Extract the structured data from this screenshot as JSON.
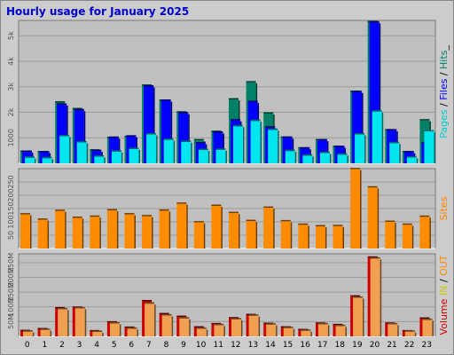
{
  "chart_data": {
    "type": "bar",
    "title": "Hourly usage for January 2025",
    "categories": [
      "0",
      "1",
      "2",
      "3",
      "4",
      "5",
      "6",
      "7",
      "8",
      "9",
      "10",
      "11",
      "12",
      "13",
      "14",
      "15",
      "16",
      "17",
      "18",
      "19",
      "20",
      "21",
      "22",
      "23"
    ],
    "panels": [
      {
        "id": "top",
        "ticks": [
          "1000",
          "2k",
          "3k",
          "4k",
          "5k"
        ],
        "tick_values": [
          1000,
          2000,
          3000,
          4000,
          5000
        ],
        "ylim": [
          0,
          5600
        ],
        "side_labels": [
          {
            "text": "Pages",
            "color": "#00cccc"
          },
          {
            "text": " / ",
            "color": "#000000"
          },
          {
            "text": "Files",
            "color": "#0000ff"
          },
          {
            "text": " / ",
            "color": "#000000"
          },
          {
            "text": "Hits",
            "color": "#008066"
          },
          {
            "text": "_",
            "color": "#000000"
          }
        ],
        "series": [
          {
            "name": "Hits",
            "color": "#008066",
            "offset": 0,
            "values": [
              450,
              430,
              2380,
              2120,
              500,
              990,
              1030,
              3040,
              2450,
              1990,
              900,
              1230,
              2500,
              3170,
              1950,
              1000,
              580,
              900,
              640,
              2800,
              5530,
              1290,
              430,
              1680
            ]
          },
          {
            "name": "Files",
            "color": "#0000ff",
            "offset": 2,
            "values": [
              450,
              430,
              2300,
              2080,
              480,
              1000,
              1050,
              3010,
              2450,
              1960,
              780,
              1200,
              1680,
              2400,
              1400,
              1000,
              580,
              900,
              640,
              2790,
              5520,
              1290,
              430,
              780
            ]
          },
          {
            "name": "Pages",
            "color": "#00e5ee",
            "offset": 5,
            "values": [
              220,
              200,
              1060,
              820,
              260,
              460,
              560,
              1130,
              920,
              840,
              520,
              530,
              1450,
              1660,
              1310,
              480,
              300,
              400,
              340,
              1130,
              2030,
              790,
              230,
              1250
            ]
          }
        ]
      },
      {
        "id": "mid",
        "ticks": [
          "50",
          "100",
          "150",
          "200",
          "250"
        ],
        "tick_values": [
          50,
          100,
          150,
          200,
          250
        ],
        "ylim": [
          0,
          300
        ],
        "side_labels": [
          {
            "text": "Sites",
            "color": "#ff8000"
          }
        ],
        "series": [
          {
            "name": "Sites",
            "color": "#ff8c00",
            "offset": 0,
            "values": [
              128,
              108,
              141,
              115,
              119,
              143,
              128,
              121,
              142,
              168,
              98,
              160,
              133,
              103,
              153,
              102,
              89,
              83,
              84,
              298,
              229,
              100,
              89,
              119
            ]
          }
        ]
      },
      {
        "id": "bot",
        "ticks": [
          "50M",
          "100M",
          "150M",
          "200M",
          "250M"
        ],
        "tick_values": [
          50,
          100,
          150,
          200,
          250
        ],
        "ylim": [
          0,
          280
        ],
        "side_labels": [
          {
            "text": "Volume",
            "color": "#cc0000"
          },
          {
            "text": " ",
            "color": "#000000"
          },
          {
            "text": "IN",
            "color": "#cccc00"
          },
          {
            "text": " / ",
            "color": "#000000"
          },
          {
            "text": "OUT",
            "color": "#ff8c00"
          }
        ],
        "series": [
          {
            "name": "IN",
            "color": "#cc0000",
            "offset": 0,
            "values": [
              18,
              24,
              95,
              97,
              17,
              47,
              29,
              119,
              75,
              66,
              30,
              41,
              61,
              72,
              42,
              30,
              21,
              43,
              38,
              135,
              267,
              43,
              17,
              60
            ]
          },
          {
            "name": "OUT",
            "color": "#f0a050",
            "offset": 3,
            "values": [
              16,
              22,
              92,
              95,
              15,
              44,
              26,
              111,
              71,
              61,
              26,
              38,
              58,
              70,
              40,
              28,
              19,
              41,
              35,
              131,
              264,
              41,
              16,
              56
            ]
          }
        ]
      }
    ]
  }
}
